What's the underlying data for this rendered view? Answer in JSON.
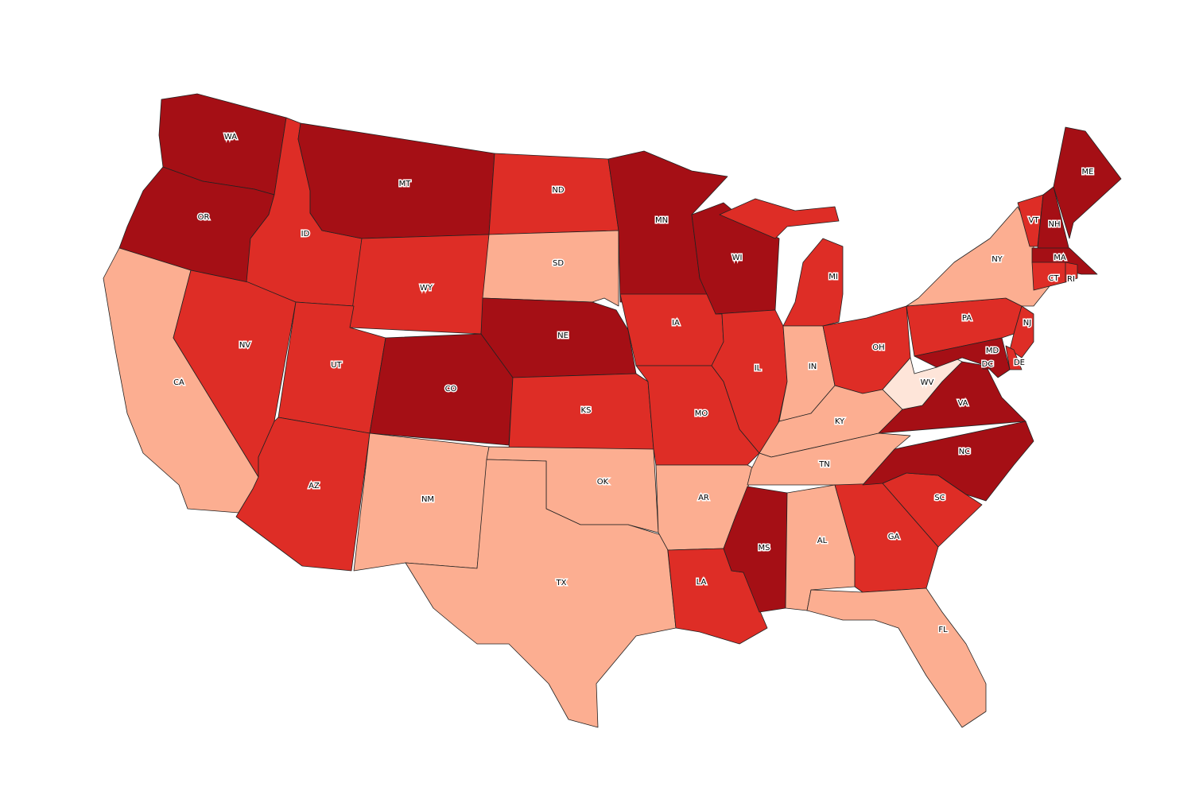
{
  "map": {
    "states": [
      {
        "label": "WA",
        "color": "#a50f15"
      },
      {
        "label": "OR",
        "color": "#a50f15"
      },
      {
        "label": "CA",
        "color": "#fcae91"
      },
      {
        "label": "ID",
        "color": "#de2d26"
      },
      {
        "label": "NV",
        "color": "#de2d26"
      },
      {
        "label": "MT",
        "color": "#a50f15"
      },
      {
        "label": "WY",
        "color": "#de2d26"
      },
      {
        "label": "UT",
        "color": "#de2d26"
      },
      {
        "label": "AZ",
        "color": "#de2d26"
      },
      {
        "label": "CO",
        "color": "#a50f15"
      },
      {
        "label": "NM",
        "color": "#fcae91"
      },
      {
        "label": "ND",
        "color": "#de2d26"
      },
      {
        "label": "SD",
        "color": "#fcae91"
      },
      {
        "label": "NE",
        "color": "#a50f15"
      },
      {
        "label": "KS",
        "color": "#de2d26"
      },
      {
        "label": "OK",
        "color": "#fcae91"
      },
      {
        "label": "TX",
        "color": "#fcae91"
      },
      {
        "label": "MN",
        "color": "#a50f15"
      },
      {
        "label": "IA",
        "color": "#de2d26"
      },
      {
        "label": "MO",
        "color": "#de2d26"
      },
      {
        "label": "AR",
        "color": "#fcae91"
      },
      {
        "label": "LA",
        "color": "#de2d26"
      },
      {
        "label": "WI",
        "color": "#a50f15"
      },
      {
        "label": "IL",
        "color": "#de2d26"
      },
      {
        "label": "MI",
        "color": "#de2d26"
      },
      {
        "label": "IN",
        "color": "#fcae91"
      },
      {
        "label": "OH",
        "color": "#de2d26"
      },
      {
        "label": "KY",
        "color": "#fcae91"
      },
      {
        "label": "TN",
        "color": "#fcae91"
      },
      {
        "label": "MS",
        "color": "#a50f15"
      },
      {
        "label": "AL",
        "color": "#fcae91"
      },
      {
        "label": "GA",
        "color": "#de2d26"
      },
      {
        "label": "FL",
        "color": "#fcae91"
      },
      {
        "label": "SC",
        "color": "#de2d26"
      },
      {
        "label": "NC",
        "color": "#a50f15"
      },
      {
        "label": "VA",
        "color": "#a50f15"
      },
      {
        "label": "WV",
        "color": "#fee5d9"
      },
      {
        "label": "PA",
        "color": "#de2d26"
      },
      {
        "label": "NY",
        "color": "#fcae91"
      },
      {
        "label": "VT",
        "color": "#de2d26"
      },
      {
        "label": "NH",
        "color": "#a50f15"
      },
      {
        "label": "ME",
        "color": "#a50f15"
      },
      {
        "label": "MA",
        "color": "#a50f15"
      },
      {
        "label": "CT",
        "color": "#de2d26"
      },
      {
        "label": "RI",
        "color": "#de2d26"
      },
      {
        "label": "NJ",
        "color": "#de2d26"
      },
      {
        "label": "DE",
        "color": "#de2d26"
      },
      {
        "label": "MD",
        "color": "#a50f15"
      },
      {
        "label": "DC",
        "color": "#a50f15"
      }
    ]
  }
}
